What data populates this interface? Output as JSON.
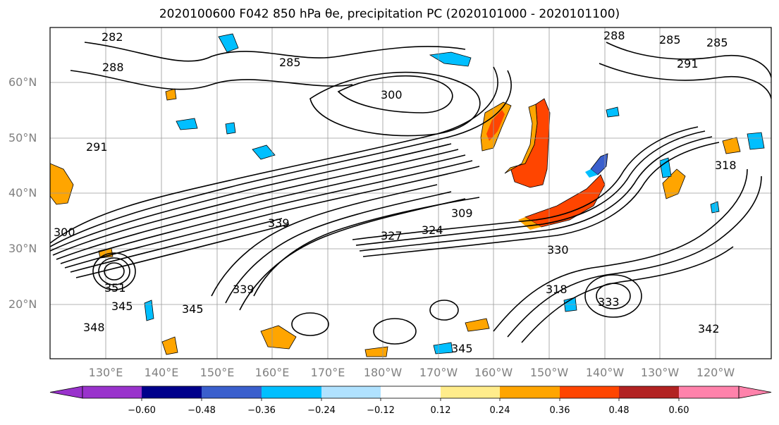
{
  "title": "2020100600 F042 850 hPa θe, precipitation PC (2020101000 - 2020101100)",
  "map": {
    "lat_labels": [
      "60°N",
      "50°N",
      "40°N",
      "30°N",
      "20°N"
    ],
    "lon_labels": [
      "130°E",
      "140°E",
      "150°E",
      "160°E",
      "170°E",
      "180°W",
      "170°W",
      "160°W",
      "150°W",
      "140°W",
      "130°W",
      "120°W"
    ],
    "contour_labels": [
      "282",
      "288",
      "285",
      "300",
      "291",
      "285",
      "291",
      "309",
      "300",
      "339",
      "327",
      "324",
      "330",
      "318",
      "345",
      "351",
      "345",
      "348",
      "342",
      "345",
      "339",
      "333",
      "318",
      "288",
      "285"
    ]
  },
  "colorbar": {
    "ticks": [
      "−0.60",
      "−0.48",
      "−0.36",
      "−0.24",
      "−0.12",
      "0.12",
      "0.24",
      "0.36",
      "0.48",
      "0.60"
    ],
    "colors": [
      "#9932cc",
      "#00008b",
      "#3a5fcd",
      "#00bfff",
      "#b0e2ff",
      "#ffffff",
      "#ffec8b",
      "#ffa500",
      "#ff4500",
      "#b22222",
      "#ff82ab"
    ]
  }
}
